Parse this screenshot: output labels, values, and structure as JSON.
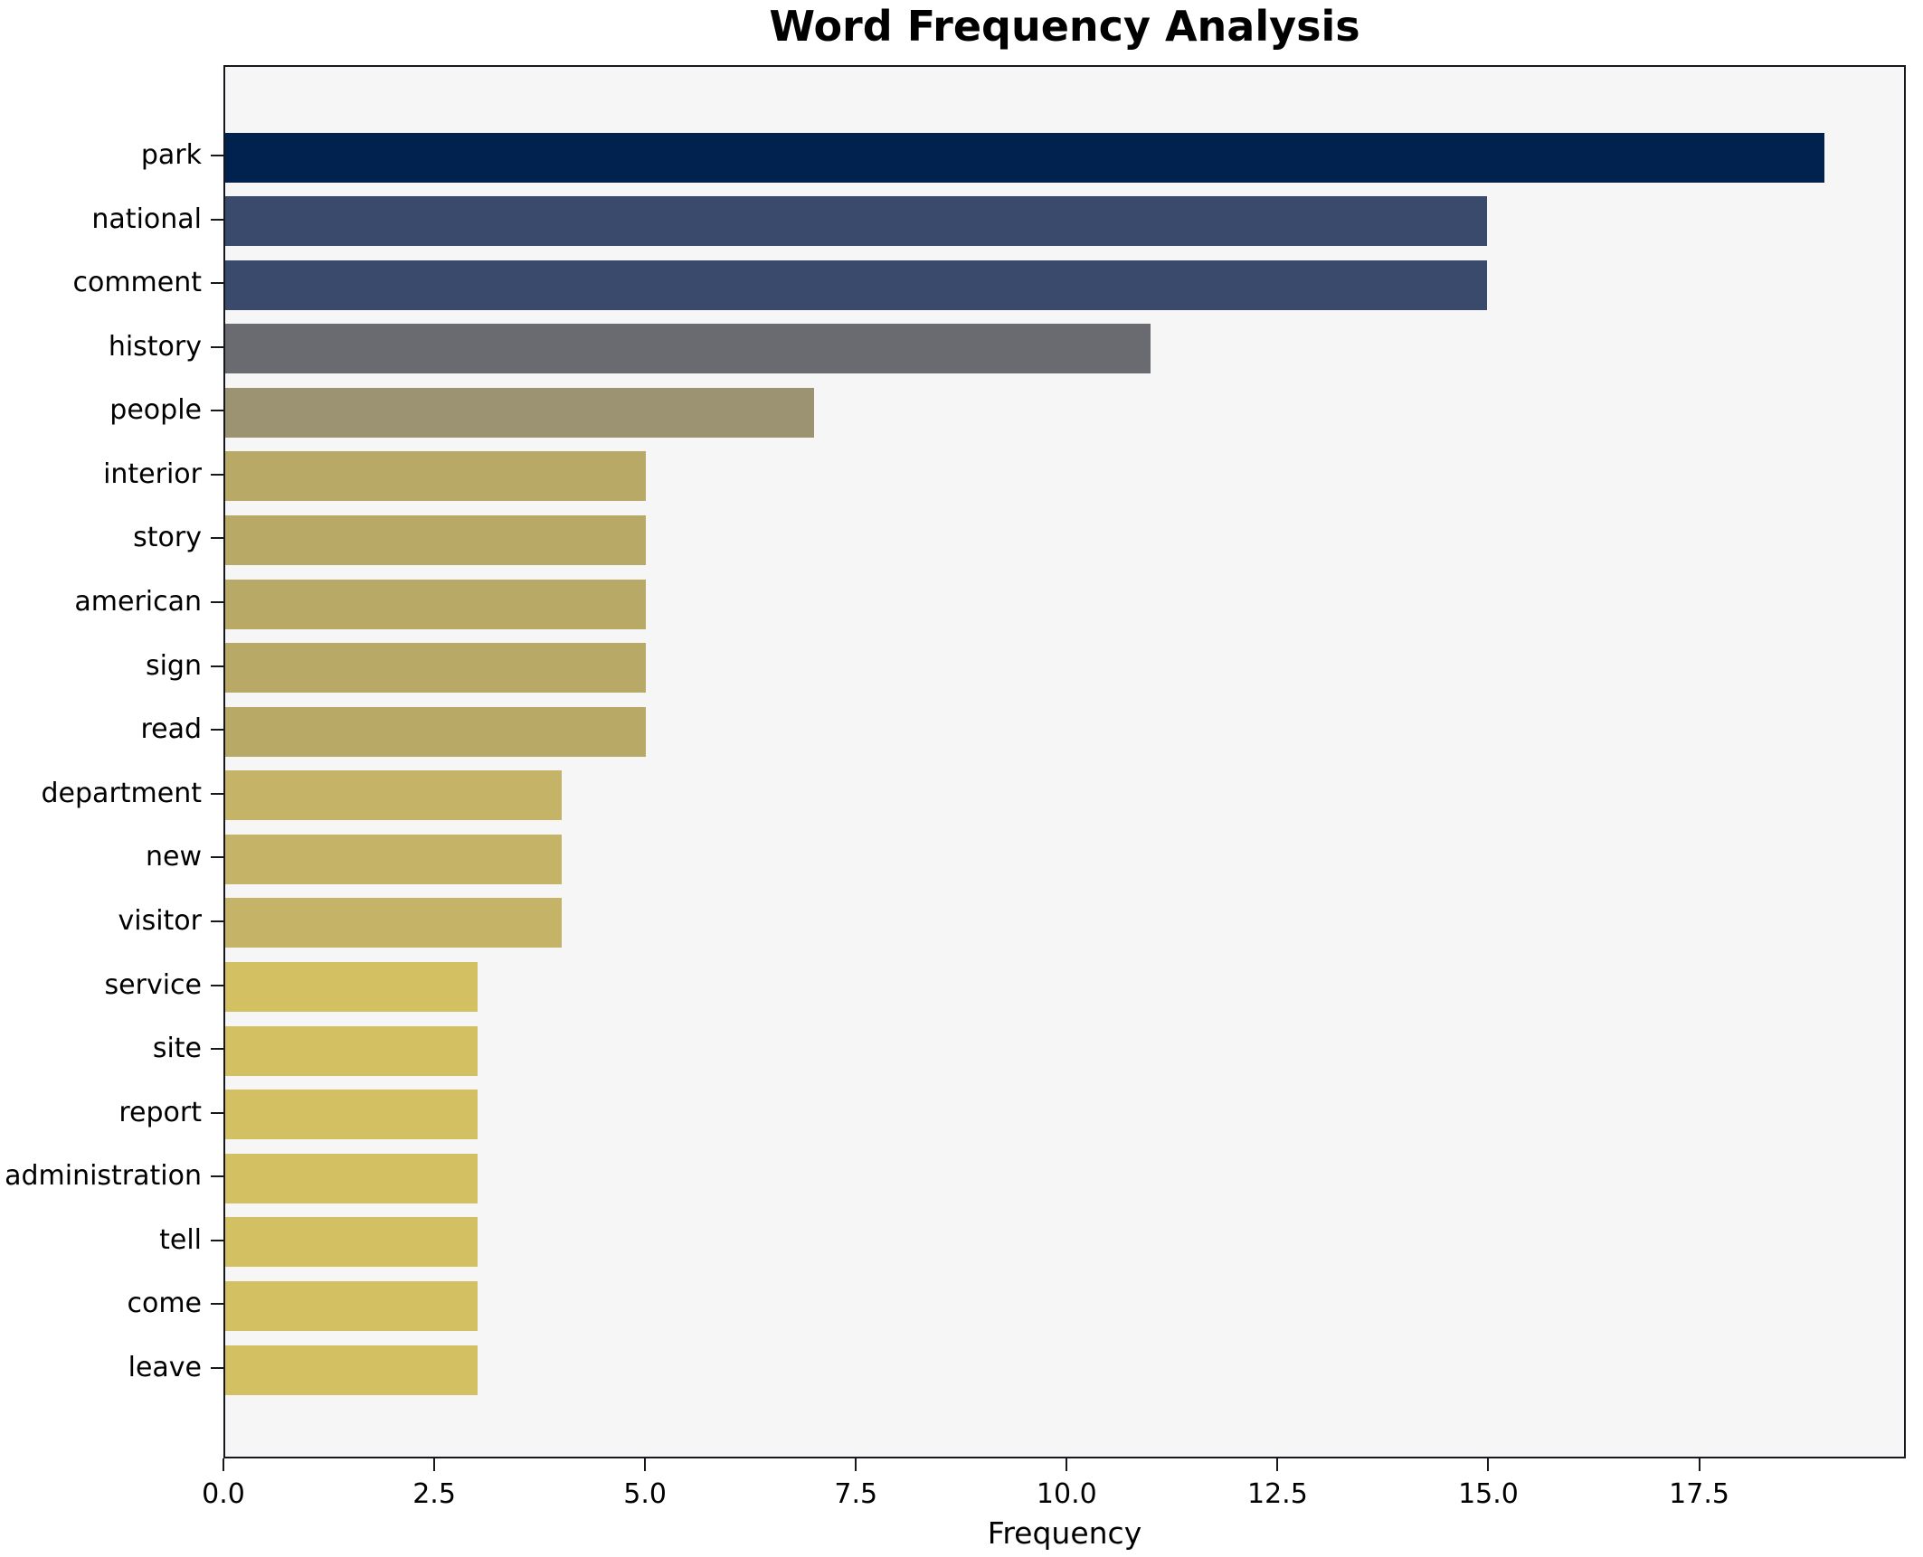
{
  "chart_data": {
    "type": "bar",
    "orientation": "horizontal",
    "title": "Word Frequency Analysis",
    "xlabel": "Frequency",
    "ylabel": "",
    "categories": [
      "park",
      "national",
      "comment",
      "history",
      "people",
      "interior",
      "story",
      "american",
      "sign",
      "read",
      "department",
      "new",
      "visitor",
      "service",
      "site",
      "report",
      "administration",
      "tell",
      "come",
      "leave"
    ],
    "values": [
      19,
      15,
      15,
      11,
      7,
      5,
      5,
      5,
      5,
      5,
      4,
      4,
      4,
      3,
      3,
      3,
      3,
      3,
      3,
      3
    ],
    "bar_colors": [
      "#01224e",
      "#3a4a6c",
      "#3a4a6c",
      "#6a6b71",
      "#9b9372",
      "#b9a967",
      "#b9a967",
      "#b9a967",
      "#b9a967",
      "#b9a967",
      "#c5b467",
      "#c5b467",
      "#c5b467",
      "#d3c063",
      "#d3c063",
      "#d3c063",
      "#d3c063",
      "#d3c063",
      "#d3c063",
      "#d3c063"
    ],
    "xlim": [
      0,
      19.95
    ],
    "x_ticks": [
      0,
      2.5,
      5,
      7.5,
      10,
      12.5,
      15,
      17.5
    ],
    "x_tick_labels": [
      "0.0",
      "2.5",
      "5.0",
      "7.5",
      "10.0",
      "12.5",
      "15.0",
      "17.5"
    ],
    "grid": false,
    "legend": null,
    "plot_bg": "#f7f6f6",
    "figure_bg": "#ffffff",
    "spine_color": "#17171e",
    "text_color": "#000000"
  }
}
